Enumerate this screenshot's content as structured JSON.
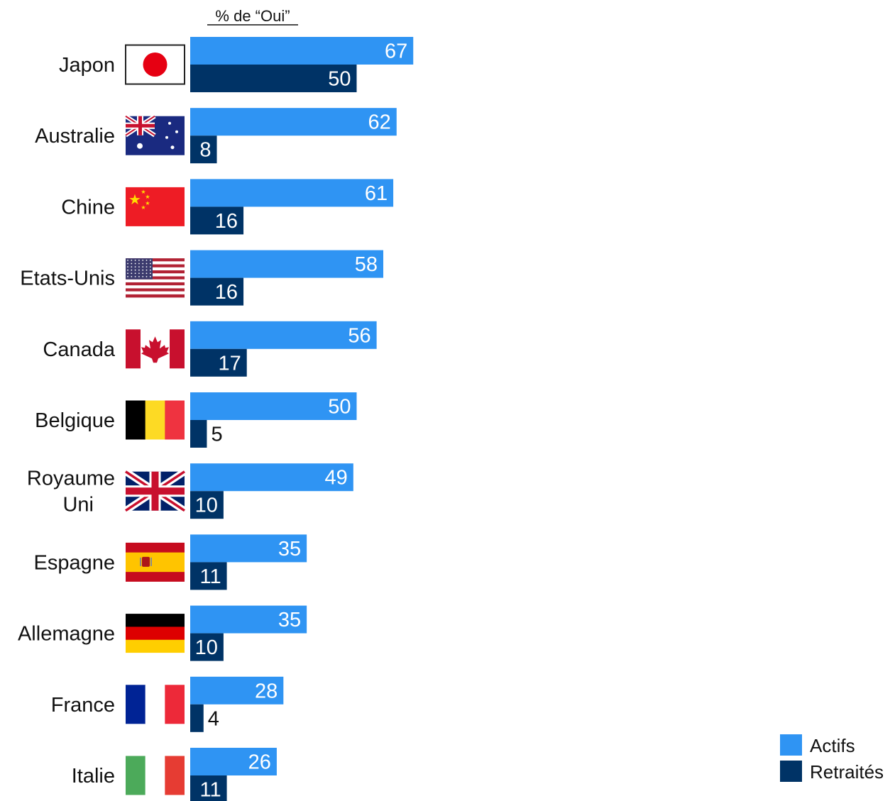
{
  "chart_data": {
    "type": "bar",
    "orientation": "horizontal",
    "header": "% de “Oui”",
    "categories": [
      "Japon",
      "Australie",
      "Chine",
      "Etats-Unis",
      "Canada",
      "Belgique",
      "Royaume Uni",
      "Espagne",
      "Allemagne",
      "France",
      "Italie"
    ],
    "category_lines": [
      [
        "Japon"
      ],
      [
        "Australie"
      ],
      [
        "Chine"
      ],
      [
        "Etats-Unis"
      ],
      [
        "Canada"
      ],
      [
        "Belgique"
      ],
      [
        "Royaume",
        "Uni"
      ],
      [
        "Espagne"
      ],
      [
        "Allemagne"
      ],
      [
        "France"
      ],
      [
        "Italie"
      ]
    ],
    "flags": [
      "japan-flag",
      "australia-flag",
      "china-flag",
      "usa-flag",
      "canada-flag",
      "belgium-flag",
      "uk-flag",
      "spain-flag",
      "germany-flag",
      "france-flag",
      "italy-flag"
    ],
    "series": [
      {
        "name": "Actifs",
        "color": "#2f94f3",
        "label_color": "#ffffff",
        "values": [
          67,
          62,
          61,
          58,
          56,
          50,
          49,
          35,
          35,
          28,
          26
        ]
      },
      {
        "name": "Retraités",
        "color": "#003366",
        "label_color": "#ffffff",
        "values": [
          50,
          8,
          16,
          16,
          17,
          5,
          10,
          11,
          10,
          4,
          11
        ]
      }
    ],
    "xlim": [
      0,
      67
    ],
    "grid": false,
    "legend_position": "bottom-right"
  }
}
